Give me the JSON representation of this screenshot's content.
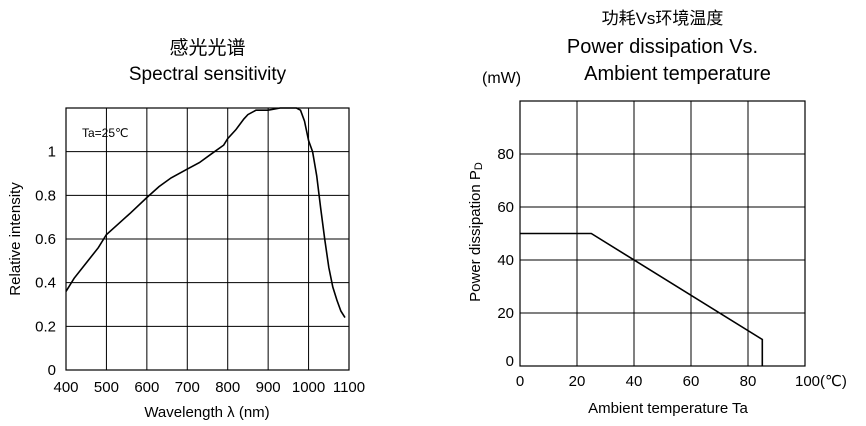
{
  "chart_data": [
    {
      "type": "line",
      "title_cn": "感光光谱",
      "title": "Spectral sensitivity",
      "xlabel": "Wavelength  λ (nm)",
      "ylabel": "Relative intensity",
      "annotation": "Ta=25℃",
      "xlim": [
        400,
        1100
      ],
      "ylim": [
        0,
        1.2
      ],
      "xticks": [
        "400",
        "500",
        "600",
        "700",
        "800",
        "900",
        "1000",
        "1100"
      ],
      "yticks": [
        "0",
        "0.2",
        "0.4",
        "0.6",
        "0.8",
        "1"
      ],
      "grid": true,
      "series": [
        {
          "x": [
            400,
            420,
            450,
            480,
            500,
            530,
            560,
            600,
            630,
            660,
            700,
            730,
            760,
            790,
            800,
            820,
            840,
            850,
            870,
            900,
            930,
            950,
            970,
            980,
            990,
            1000,
            1010,
            1020,
            1030,
            1040,
            1050,
            1060,
            1070,
            1080,
            1090
          ],
          "y": [
            0.36,
            0.42,
            0.49,
            0.56,
            0.62,
            0.67,
            0.72,
            0.79,
            0.84,
            0.88,
            0.92,
            0.95,
            0.99,
            1.03,
            1.06,
            1.1,
            1.15,
            1.17,
            1.19,
            1.19,
            1.2,
            1.2,
            1.2,
            1.19,
            1.14,
            1.05,
            1.0,
            0.89,
            0.74,
            0.6,
            0.47,
            0.38,
            0.32,
            0.27,
            0.24
          ]
        }
      ]
    },
    {
      "type": "line",
      "title_cn": "功耗Vs环境温度",
      "title_line1": "Power dissipation Vs.",
      "title_line2": "Ambient temperature",
      "unit": "(mW)",
      "xlabel": "Ambient temperature Ta",
      "ylabel": "Power dissipation P",
      "ylabel_sub": "D",
      "xlim": [
        0,
        100
      ],
      "ylim": [
        0,
        100
      ],
      "xticks": [
        "0",
        "20",
        "40",
        "60",
        "80",
        "100(℃)"
      ],
      "yticks": [
        "0",
        "20",
        "40",
        "60",
        "80"
      ],
      "grid": true,
      "series": [
        {
          "x": [
            0,
            25,
            85,
            85
          ],
          "y": [
            50,
            50,
            10,
            0
          ]
        }
      ]
    }
  ]
}
